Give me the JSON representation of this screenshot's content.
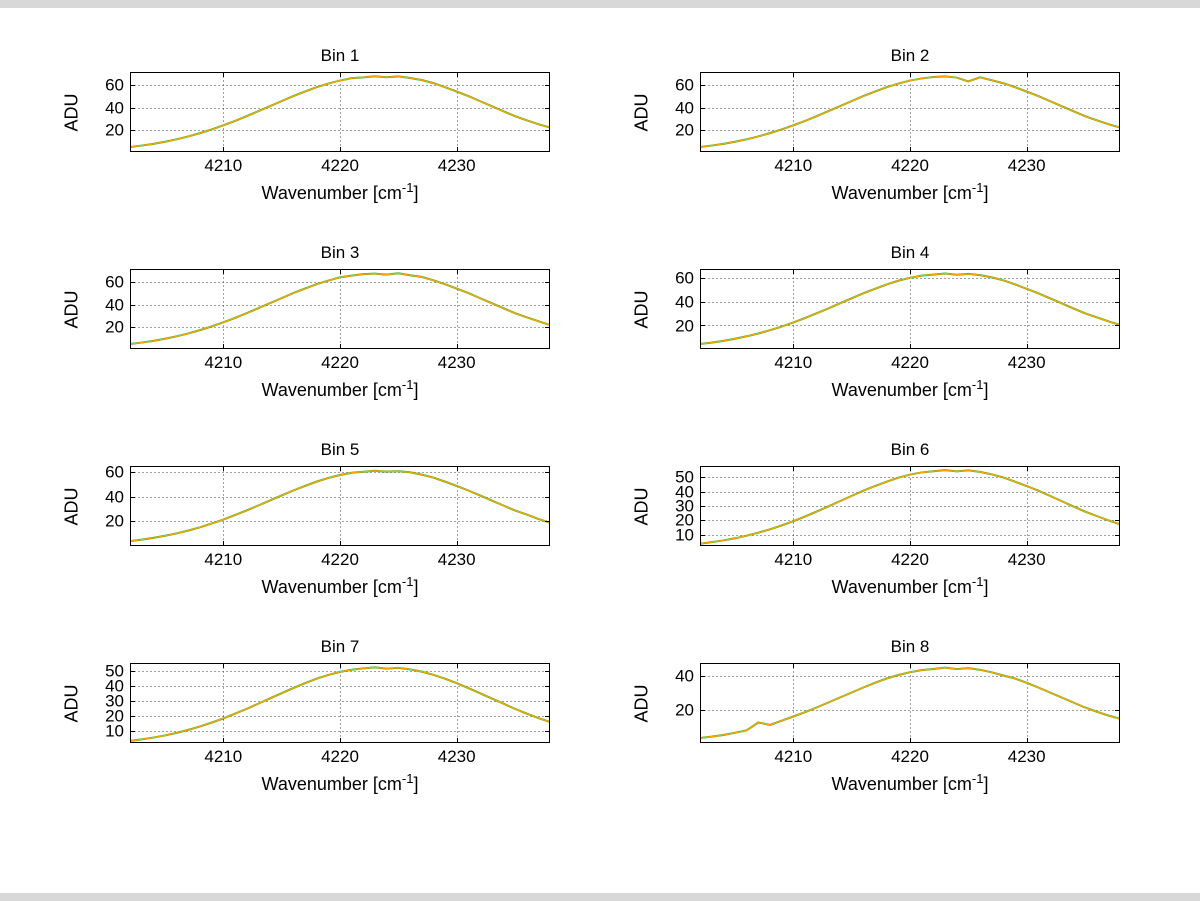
{
  "figure": {
    "background": "#ffffff",
    "grid_color": "#404040",
    "curve_color": "#FFA500",
    "curve_undercolor": "#22AA22",
    "ylabel": "ADU",
    "xlabel_parts": {
      "base": "Wavenumber [cm",
      "sup": "-1",
      "end": "]"
    }
  },
  "chart_data": {
    "type": "line",
    "xlabel": "Wavenumber [cm⁻¹]",
    "ylabel": "ADU",
    "legend": null,
    "grid": true,
    "xlim": [
      4202,
      4238
    ],
    "xticks": [
      4210,
      4220,
      4230
    ],
    "x": [
      4202,
      4203,
      4204,
      4205,
      4206,
      4207,
      4208,
      4209,
      4210,
      4211,
      4212,
      4213,
      4214,
      4215,
      4216,
      4217,
      4218,
      4219,
      4220,
      4221,
      4222,
      4223,
      4224,
      4225,
      4226,
      4227,
      4228,
      4229,
      4230,
      4231,
      4232,
      4233,
      4234,
      4235,
      4236,
      4237,
      4238
    ],
    "subplots": [
      {
        "title": "Bin 1",
        "yticks": [
          20,
          40,
          60
        ],
        "ylim": [
          0,
          72
        ],
        "y": [
          4.5,
          5.8,
          7.3,
          9.2,
          11.4,
          14.0,
          17.0,
          20.3,
          24.0,
          28.0,
          32.2,
          36.7,
          41.2,
          45.8,
          50.3,
          54.4,
          58.3,
          61.6,
          64.3,
          66.5,
          67.2,
          68.2,
          67.3,
          68.0,
          66.6,
          64.8,
          62.0,
          58.3,
          54.4,
          50.3,
          45.8,
          41.2,
          36.7,
          32.2,
          28.5,
          25.0,
          22.0
        ]
      },
      {
        "title": "Bin 2",
        "yticks": [
          20,
          40,
          60
        ],
        "ylim": [
          0,
          72
        ],
        "y": [
          4.5,
          5.8,
          7.3,
          9.2,
          11.4,
          14.0,
          17.0,
          20.3,
          24.0,
          28.0,
          32.2,
          36.7,
          41.2,
          45.8,
          50.3,
          54.4,
          58.3,
          61.6,
          64.3,
          66.2,
          67.5,
          68.1,
          67.0,
          63.5,
          67.2,
          64.6,
          61.9,
          58.3,
          54.4,
          50.3,
          45.8,
          41.2,
          36.7,
          32.2,
          28.5,
          25.0,
          22.0
        ]
      },
      {
        "title": "Bin 3",
        "yticks": [
          20,
          40,
          60
        ],
        "ylim": [
          0,
          72
        ],
        "y": [
          4.5,
          5.8,
          7.3,
          9.2,
          11.4,
          14.0,
          17.0,
          20.3,
          24.0,
          28.0,
          32.2,
          36.7,
          41.2,
          45.8,
          50.3,
          54.4,
          58.3,
          61.6,
          64.5,
          66.0,
          67.4,
          67.8,
          66.9,
          68.2,
          66.4,
          64.9,
          61.8,
          58.3,
          54.4,
          50.3,
          45.8,
          41.2,
          36.7,
          32.2,
          28.5,
          25.0,
          21.5
        ]
      },
      {
        "title": "Bin 4",
        "yticks": [
          20,
          40,
          60
        ],
        "ylim": [
          0,
          68
        ],
        "y": [
          4.2,
          5.4,
          6.9,
          8.7,
          10.8,
          13.2,
          16.0,
          19.1,
          22.6,
          26.3,
          30.3,
          34.5,
          38.8,
          43.1,
          47.3,
          51.2,
          54.9,
          58.0,
          60.5,
          62.4,
          63.2,
          64.2,
          63.1,
          63.8,
          62.8,
          60.9,
          58.4,
          55.0,
          51.2,
          47.3,
          43.1,
          38.8,
          34.5,
          30.3,
          26.9,
          23.5,
          20.5
        ]
      },
      {
        "title": "Bin 5",
        "yticks": [
          20,
          40,
          60
        ],
        "ylim": [
          0,
          65
        ],
        "y": [
          4.0,
          5.2,
          6.6,
          8.3,
          10.2,
          12.6,
          15.2,
          18.2,
          21.5,
          25.1,
          28.9,
          32.9,
          37.0,
          41.1,
          45.1,
          48.8,
          52.3,
          55.3,
          57.7,
          59.5,
          60.3,
          61.1,
          60.4,
          60.8,
          59.9,
          58.0,
          55.6,
          52.3,
          48.8,
          45.1,
          41.1,
          37.0,
          32.9,
          28.9,
          25.5,
          22.0,
          19.0
        ]
      },
      {
        "title": "Bin 6",
        "yticks": [
          10,
          20,
          30,
          40,
          50
        ],
        "ylim": [
          2,
          58
        ],
        "y": [
          3.6,
          4.7,
          5.9,
          7.4,
          9.2,
          11.3,
          13.7,
          16.4,
          19.4,
          22.6,
          26.1,
          29.7,
          33.4,
          37.1,
          40.7,
          44.0,
          47.0,
          49.8,
          52.0,
          53.5,
          54.3,
          55.1,
          54.2,
          54.9,
          53.9,
          52.2,
          50.0,
          47.0,
          44.0,
          40.7,
          37.1,
          33.4,
          29.7,
          26.1,
          23.0,
          20.0,
          17.2
        ]
      },
      {
        "title": "Bin 7",
        "yticks": [
          10,
          20,
          30,
          40,
          50
        ],
        "ylim": [
          2,
          55
        ],
        "y": [
          3.4,
          4.4,
          5.6,
          7.0,
          8.7,
          10.7,
          13.0,
          15.5,
          18.3,
          21.4,
          24.6,
          28.1,
          31.5,
          35.0,
          38.4,
          41.6,
          44.6,
          47.1,
          49.1,
          50.5,
          51.4,
          52.1,
          51.3,
          51.8,
          50.8,
          49.3,
          47.2,
          44.6,
          41.6,
          38.4,
          35.0,
          31.5,
          28.1,
          24.6,
          21.5,
          18.5,
          16.0
        ]
      },
      {
        "title": "Bin 8",
        "yticks": [
          20,
          40
        ],
        "ylim": [
          0,
          48
        ],
        "y": [
          3.0,
          3.8,
          4.8,
          6.1,
          7.6,
          12.3,
          10.8,
          13.4,
          15.9,
          18.5,
          21.3,
          24.3,
          27.3,
          30.3,
          33.3,
          36.1,
          38.7,
          40.8,
          42.5,
          43.7,
          44.4,
          45.2,
          44.3,
          44.9,
          43.9,
          42.4,
          40.5,
          38.7,
          36.1,
          33.3,
          30.3,
          27.3,
          24.3,
          21.3,
          18.8,
          16.5,
          14.5
        ]
      }
    ]
  }
}
